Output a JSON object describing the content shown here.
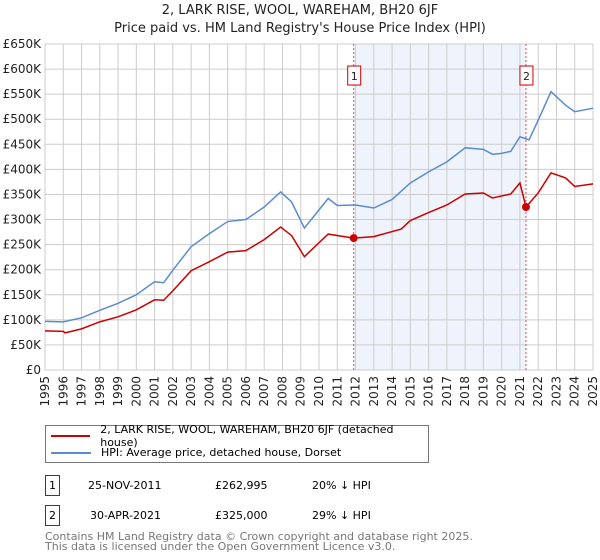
{
  "chart_data": {
    "type": "line",
    "title": "2, LARK RISE, WOOL, WAREHAM, BH20 6JF",
    "subtitle": "Price paid vs. HM Land Registry's House Price Index (HPI)",
    "xlim": [
      1995,
      2025
    ],
    "ylim": [
      0,
      650000
    ],
    "y_ticks": [
      {
        "v": 0,
        "label": "£0"
      },
      {
        "v": 50000,
        "label": "£50K"
      },
      {
        "v": 100000,
        "label": "£100K"
      },
      {
        "v": 150000,
        "label": "£150K"
      },
      {
        "v": 200000,
        "label": "£200K"
      },
      {
        "v": 250000,
        "label": "£250K"
      },
      {
        "v": 300000,
        "label": "£300K"
      },
      {
        "v": 350000,
        "label": "£350K"
      },
      {
        "v": 400000,
        "label": "£400K"
      },
      {
        "v": 450000,
        "label": "£450K"
      },
      {
        "v": 500000,
        "label": "£500K"
      },
      {
        "v": 550000,
        "label": "£550K"
      },
      {
        "v": 600000,
        "label": "£600K"
      },
      {
        "v": 650000,
        "label": "£650K"
      }
    ],
    "x_ticks": [
      "1995",
      "1996",
      "1997",
      "1998",
      "1999",
      "2000",
      "2001",
      "2002",
      "2003",
      "2004",
      "2005",
      "2006",
      "2007",
      "2008",
      "2009",
      "2010",
      "2011",
      "2012",
      "2013",
      "2014",
      "2015",
      "2016",
      "2017",
      "2018",
      "2019",
      "2020",
      "2021",
      "2022",
      "2023",
      "2024",
      "2025"
    ],
    "grid": true,
    "series": [
      {
        "name": "2, LARK RISE, WOOL, WAREHAM, BH20 6JF (detached house)",
        "color": "#cc0000",
        "x": [
          1995,
          1996,
          1996.1,
          1997,
          1998,
          1999,
          2000,
          2001,
          2001.5,
          2002,
          2003,
          2004,
          2005,
          2006,
          2007,
          2007.9,
          2008.5,
          2009.2,
          2010.5,
          2011.9,
          2013,
          2014.5,
          2015,
          2016,
          2017,
          2018,
          2019,
          2019.5,
          2020.5,
          2021.0,
          2021.33,
          2022,
          2022.7,
          2023.5,
          2024,
          2025
        ],
        "y": [
          78000,
          77000,
          74000,
          82000,
          96000,
          106000,
          120000,
          140000,
          139000,
          158000,
          198000,
          216000,
          235000,
          238000,
          260000,
          285000,
          268000,
          226000,
          271000,
          262995,
          266000,
          281000,
          298000,
          314000,
          329000,
          351000,
          353000,
          343000,
          351000,
          373000,
          325000,
          353000,
          393000,
          383000,
          366000,
          371000
        ]
      },
      {
        "name": "HPI: Average price, detached house, Dorset",
        "color": "#5b8ccf",
        "x": [
          1995,
          1996,
          1997,
          1998,
          1999,
          2000,
          2001,
          2001.5,
          2002,
          2003,
          2004,
          2005,
          2006,
          2007,
          2007.9,
          2008.5,
          2009.2,
          2010.5,
          2011,
          2012,
          2013,
          2014,
          2015,
          2016,
          2017,
          2018,
          2019,
          2019.5,
          2020,
          2020.5,
          2021,
          2021.5,
          2022,
          2022.7,
          2023.5,
          2024,
          2025
        ],
        "y": [
          97000,
          96000,
          104000,
          119000,
          133000,
          150000,
          176000,
          174000,
          199000,
          246000,
          272000,
          296000,
          300000,
          325000,
          355000,
          335000,
          283000,
          342000,
          328000,
          329000,
          323000,
          340000,
          373000,
          395000,
          415000,
          443000,
          440000,
          430000,
          432000,
          436000,
          465000,
          459000,
          498000,
          555000,
          528000,
          515000,
          522000
        ]
      }
    ],
    "sales": [
      {
        "n": "1",
        "x": 2011.9,
        "y": 262995
      },
      {
        "n": "2",
        "x": 2021.33,
        "y": 325000
      }
    ],
    "shade": [
      2011.9,
      2021.33
    ],
    "shade_color": "#eef3fc"
  },
  "legend": [
    "2, LARK RISE, WOOL, WAREHAM, BH20 6JF (detached house)",
    "HPI: Average price, detached house, Dorset"
  ],
  "transactions": [
    {
      "n": "1",
      "date": "25-NOV-2011",
      "price": "£262,995",
      "hpi": "20% ↓ HPI"
    },
    {
      "n": "2",
      "date": "30-APR-2021",
      "price": "£325,000",
      "hpi": "29% ↓ HPI"
    }
  ],
  "footer": [
    "Contains HM Land Registry data © Crown copyright and database right 2025.",
    "This data is licensed under the Open Government Licence v3.0."
  ]
}
